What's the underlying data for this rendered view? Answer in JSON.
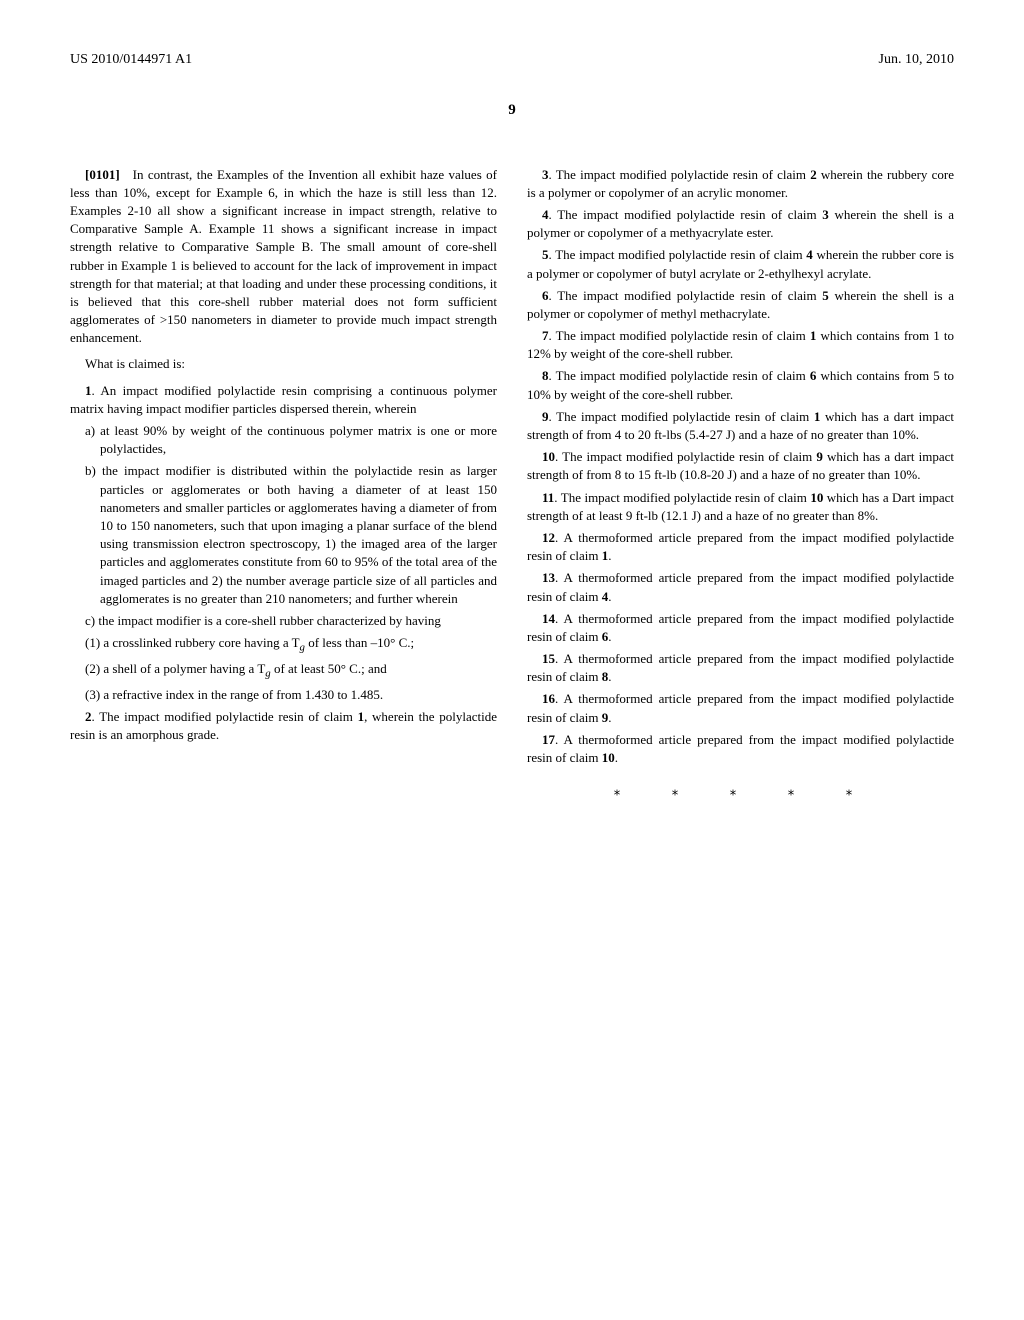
{
  "header": {
    "pub_number": "US 2010/0144971 A1",
    "date": "Jun. 10, 2010"
  },
  "page_number": "9",
  "col1": {
    "para_0101": "[0101] In contrast, the Examples of the Invention all exhibit haze values of less than 10%, except for Example 6, in which the haze is still less than 12. Examples 2-10 all show a significant increase in impact strength, relative to Comparative Sample A. Example 11 shows a significant increase in impact strength relative to Comparative Sample B. The small amount of core-shell rubber in Example 1 is believed to account for the lack of improvement in impact strength for that material; at that loading and under these processing conditions, it is believed that this core-shell rubber material does not form sufficient agglomerates of >150 nanometers in diameter to provide much impact strength enhancement.",
    "what_claimed": "What is claimed is:",
    "claim1": ". An impact modified polylactide resin comprising a continuous polymer matrix having impact modifier particles dispersed therein, wherein",
    "claim1_a": "a) at least 90% by weight of the continuous polymer matrix is one or more polylactides,",
    "claim1_b": "b) the impact modifier is distributed within the polylactide resin as larger particles or agglomerates or both having a diameter of at least 150 nanometers and smaller particles or agglomerates having a diameter of from 10 to 150 nanometers, such that upon imaging a planar surface of the blend using transmission electron spectroscopy, 1) the imaged area of the larger particles and agglomerates constitute from 60 to 95% of the total area of the imaged particles and 2) the number average particle size of all particles and agglomerates is no greater than 210 nanometers; and further wherein",
    "claim1_c": "c) the impact modifier is a core-shell rubber characterized by having",
    "claim1_1": "(1) a crosslinked rubbery core having a T",
    "claim1_1_suffix": " of less than –10° C.;",
    "claim1_2": "(2) a shell of a polymer having a T",
    "claim1_2_suffix": " of at least 50° C.; and",
    "claim1_3": "(3) a refractive index in the range of from 1.430 to 1.485.",
    "claim2_pre": ". The impact modified polylactide resin of claim ",
    "claim2_post": ", wherein the polylactide resin is an amorphous grade."
  },
  "col2": {
    "claim3_pre": ". The impact modified polylactide resin of claim ",
    "claim3_post": " wherein the rubbery core is a polymer or copolymer of an acrylic monomer.",
    "claim4_pre": ". The impact modified polylactide resin of claim ",
    "claim4_post": " wherein the shell is a polymer or copolymer of a methyacrylate ester.",
    "claim5_pre": ". The impact modified polylactide resin of claim ",
    "claim5_post": " wherein the rubber core is a polymer or copolymer of butyl acrylate or 2-ethylhexyl acrylate.",
    "claim6_pre": ". The impact modified polylactide resin of claim ",
    "claim6_post": " wherein the shell is a polymer or copolymer of methyl methacrylate.",
    "claim7_pre": ". The impact modified polylactide resin of claim ",
    "claim7_post": " which contains from 1 to 12% by weight of the core-shell rubber.",
    "claim8_pre": ". The impact modified polylactide resin of claim ",
    "claim8_post": " which contains from 5 to 10% by weight of the core-shell rubber.",
    "claim9_pre": ". The impact modified polylactide resin of claim ",
    "claim9_post": " which has a dart impact strength of from 4 to 20 ft-lbs (5.4-27 J) and a haze of no greater than 10%.",
    "claim10_pre": ". The impact modified polylactide resin of claim ",
    "claim10_post": " which has a dart impact strength of from 8 to 15 ft-lb (10.8-20 J) and a haze of no greater than 10%.",
    "claim11_pre": ". The impact modified polylactide resin of claim ",
    "claim11_post": " which has a Dart impact strength of at least 9 ft-lb (12.1 J) and a haze of no greater than 8%.",
    "claim12_pre": ". A thermoformed article prepared from the impact modified polylactide resin of claim ",
    "claim12_post": ".",
    "claim13_pre": ". A thermoformed article prepared from the impact modified polylactide resin of claim ",
    "claim13_post": ".",
    "claim14_pre": ". A thermoformed article prepared from the impact modified polylactide resin of claim ",
    "claim14_post": ".",
    "claim15_pre": ". A thermoformed article prepared from the impact modified polylactide resin of claim ",
    "claim15_post": ".",
    "claim16_pre": ". A thermoformed article prepared from the impact modified polylactide resin of claim ",
    "claim16_post": ".",
    "claim17_pre": ". A thermoformed article prepared from the impact modified polylactide resin of claim ",
    "claim17_post": ".",
    "end": "*   *   *   *   *"
  },
  "nums": {
    "n1": "1",
    "n2": "2",
    "n3": "3",
    "n4": "4",
    "n5": "5",
    "n6": "6",
    "n7": "7",
    "n8": "8",
    "n9": "9",
    "n10": "10",
    "n11": "11",
    "n12": "12",
    "n13": "13",
    "n14": "14",
    "n15": "15",
    "n16": "16",
    "n17": "17"
  },
  "sub_g": "g"
}
